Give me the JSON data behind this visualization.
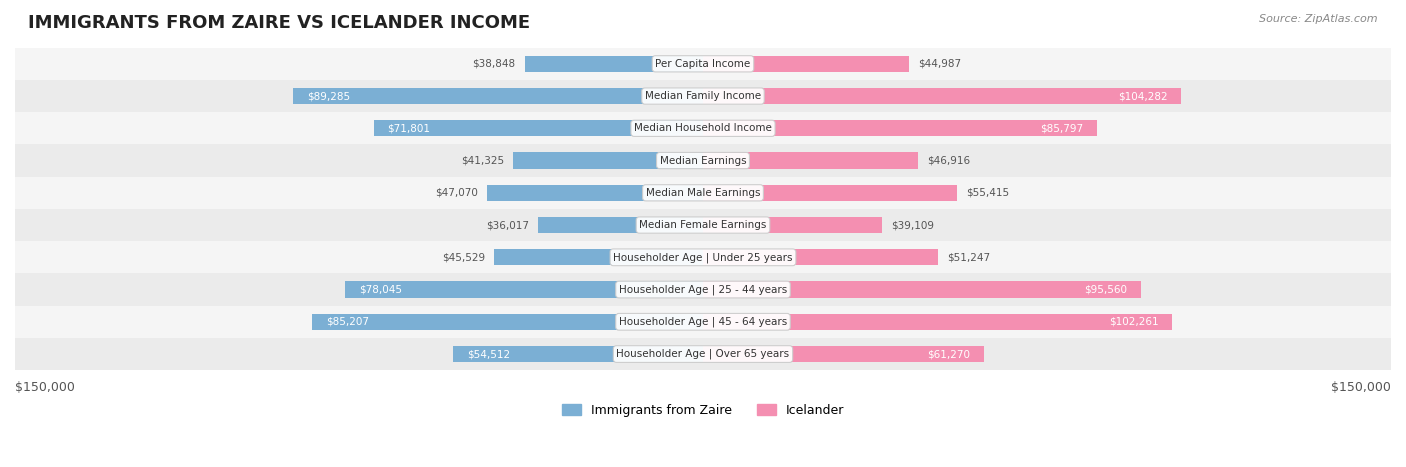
{
  "title": "IMMIGRANTS FROM ZAIRE VS ICELANDER INCOME",
  "source": "Source: ZipAtlas.com",
  "categories": [
    "Per Capita Income",
    "Median Family Income",
    "Median Household Income",
    "Median Earnings",
    "Median Male Earnings",
    "Median Female Earnings",
    "Householder Age | Under 25 years",
    "Householder Age | 25 - 44 years",
    "Householder Age | 45 - 64 years",
    "Householder Age | Over 65 years"
  ],
  "zaire_values": [
    38848,
    89285,
    71801,
    41325,
    47070,
    36017,
    45529,
    78045,
    85207,
    54512
  ],
  "icelander_values": [
    44987,
    104282,
    85797,
    46916,
    55415,
    39109,
    51247,
    95560,
    102261,
    61270
  ],
  "zaire_color": "#7bafd4",
  "icelander_color": "#f48fb1",
  "zaire_color_dark": "#5b8fbf",
  "icelander_color_dark": "#e05a8a",
  "max_value": 150000,
  "xlabel_left": "$150,000",
  "xlabel_right": "$150,000",
  "bg_color": "#ffffff",
  "row_bg_color": "#f0f0f0",
  "label_color_dark": "#333333",
  "label_color_white": "#ffffff",
  "bar_height": 0.35,
  "legend_zaire": "Immigrants from Zaire",
  "legend_icelander": "Icelander"
}
